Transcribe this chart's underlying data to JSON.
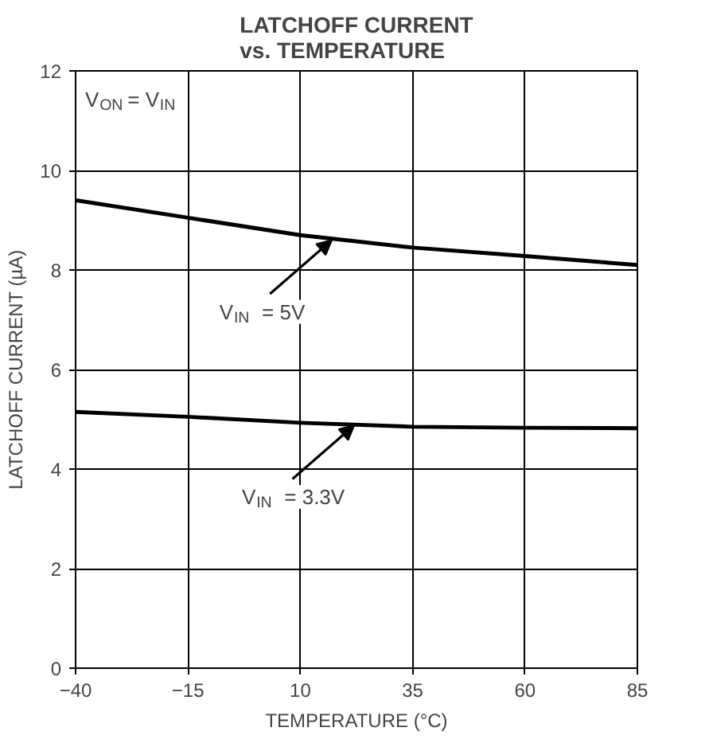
{
  "chart_data": {
    "type": "line",
    "title": "LATCHOFF CURRENT\nvs. TEMPERATURE",
    "xlabel": "TEMPERATURE (°C)",
    "ylabel": "LATCHOFF CURRENT (µA)",
    "x": [
      -40,
      -15,
      10,
      35,
      60,
      85
    ],
    "series": [
      {
        "color": "#000000",
        "values": [
          9.4,
          9.05,
          8.7,
          8.45,
          8.28,
          8.1
        ]
      },
      {
        "color": "#000000",
        "values": [
          5.15,
          5.05,
          4.93,
          4.85,
          4.83,
          4.82
        ]
      }
    ],
    "xlim": [
      -40,
      85
    ],
    "xticks": [
      -40,
      -15,
      10,
      35,
      60,
      85
    ],
    "ylim": [
      0,
      12
    ],
    "yticks": [
      0,
      2,
      4,
      6,
      8,
      10,
      12
    ],
    "grid": true,
    "marker": "none",
    "line_style": "solid",
    "annotations": [
      "V$_{ON}$ = V$_{IN}$",
      {
        "text": "V$_{IN}$ = 5V",
        "x": 17,
        "y": 8.6
      },
      {
        "text": "V$_{IN}$ = 3.3V",
        "x": 22,
        "y": 4.88
      }
    ]
  }
}
